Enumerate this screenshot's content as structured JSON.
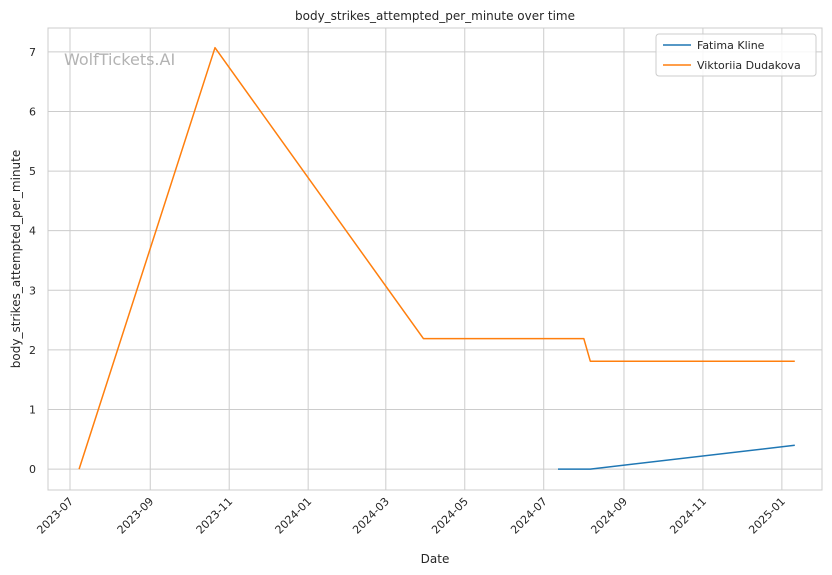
{
  "watermark": "WolfTickets.AI",
  "chart_data": {
    "type": "line",
    "title": "body_strikes_attempted_per_minute over time",
    "xlabel": "Date",
    "ylabel": "body_strikes_attempted_per_minute",
    "x_axis_type": "date",
    "xlim": [
      "2023-06-14",
      "2025-02-01"
    ],
    "ylim": [
      -0.35,
      7.4
    ],
    "x_ticks": [
      "2023-07",
      "2023-09",
      "2023-11",
      "2024-01",
      "2024-03",
      "2024-05",
      "2024-07",
      "2024-09",
      "2024-11",
      "2025-01"
    ],
    "y_ticks": [
      0,
      1,
      2,
      3,
      4,
      5,
      6,
      7
    ],
    "grid": true,
    "legend_position": "top-right",
    "series": [
      {
        "name": "Fatima Kline",
        "color": "#1f77b4",
        "points": [
          {
            "x": "2024-07-12",
            "y": 0.0
          },
          {
            "x": "2024-08-06",
            "y": 0.0
          },
          {
            "x": "2025-01-11",
            "y": 0.4
          }
        ]
      },
      {
        "name": "Viktoriia Dudakova",
        "color": "#ff7f0e",
        "points": [
          {
            "x": "2023-07-08",
            "y": 0.0
          },
          {
            "x": "2023-10-21",
            "y": 7.07
          },
          {
            "x": "2024-03-30",
            "y": 2.19
          },
          {
            "x": "2024-08-01",
            "y": 2.19
          },
          {
            "x": "2024-08-06",
            "y": 1.81
          },
          {
            "x": "2025-01-11",
            "y": 1.81
          }
        ]
      }
    ]
  }
}
